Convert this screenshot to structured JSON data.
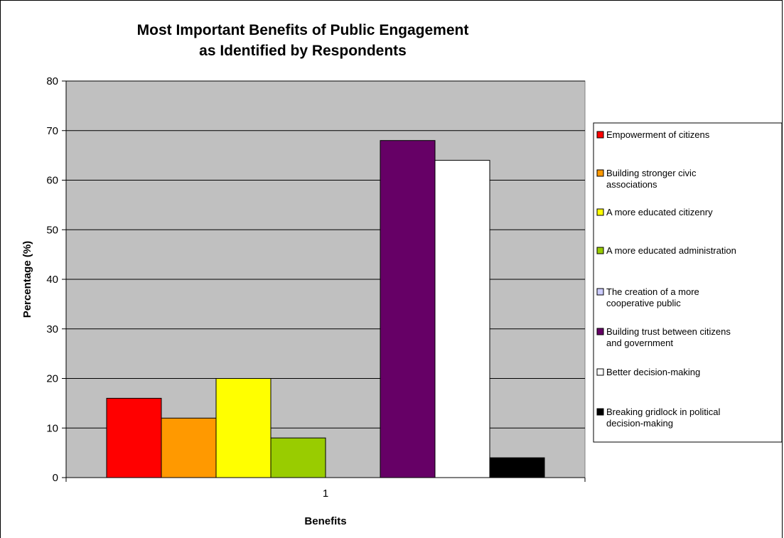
{
  "chart_data": {
    "type": "bar",
    "title": [
      "Most Important Benefits of Public Engagement",
      "as Identified by Respondents"
    ],
    "xlabel": "Benefits",
    "ylabel": "Percentage (%)",
    "categories": [
      "1"
    ],
    "ylim": [
      0,
      80
    ],
    "yticks": [
      0,
      10,
      20,
      30,
      40,
      50,
      60,
      70,
      80
    ],
    "grid": true,
    "legend_position": "right",
    "plot_background": "#c0c0c0",
    "series": [
      {
        "name": [
          "Empowerment of citizens"
        ],
        "color": "#ff0000",
        "values": [
          16
        ]
      },
      {
        "name": [
          "Building stronger civic",
          "associations"
        ],
        "color": "#ff9900",
        "values": [
          12
        ]
      },
      {
        "name": [
          "A more educated citizenry"
        ],
        "color": "#ffff00",
        "values": [
          20
        ]
      },
      {
        "name": [
          "A more educated administration"
        ],
        "color": "#99cc00",
        "values": [
          8
        ]
      },
      {
        "name": [
          "The creation of a more",
          "cooperative public"
        ],
        "color": "#ccccff",
        "values": [
          0
        ]
      },
      {
        "name": [
          "Building trust between citizens",
          "and government"
        ],
        "color": "#660066",
        "values": [
          68
        ]
      },
      {
        "name": [
          "Better decision-making"
        ],
        "color": "#ffffff",
        "values": [
          64
        ]
      },
      {
        "name": [
          "Breaking gridlock in political",
          "decision-making"
        ],
        "color": "#000000",
        "values": [
          4
        ]
      }
    ]
  }
}
